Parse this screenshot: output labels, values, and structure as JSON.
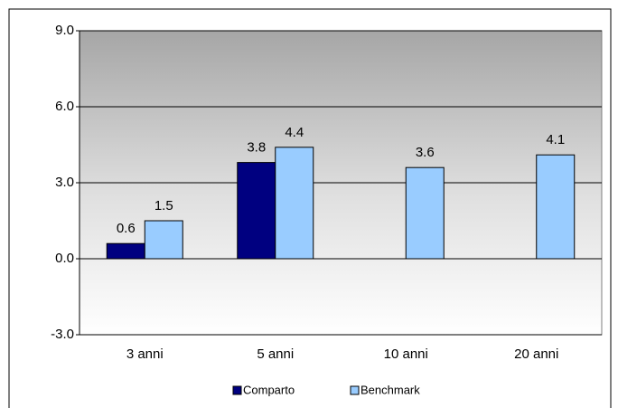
{
  "chart_data": {
    "type": "bar",
    "categories": [
      "3 anni",
      "5 anni",
      "10 anni",
      "20 anni"
    ],
    "series": [
      {
        "name": "Comparto",
        "color": "#000080",
        "values": [
          0.6,
          3.8,
          null,
          null
        ]
      },
      {
        "name": "Benchmark",
        "color": "#99ccff",
        "values": [
          1.5,
          4.4,
          3.6,
          4.1
        ]
      }
    ],
    "ylim": [
      -3,
      9
    ],
    "yticks": [
      {
        "value": -3,
        "label": "-3.0"
      },
      {
        "value": 0,
        "label": "0.0"
      },
      {
        "value": 3,
        "label": "3.0"
      },
      {
        "value": 6,
        "label": "6.0"
      },
      {
        "value": 9,
        "label": "9.0"
      }
    ],
    "grid": true,
    "legend": "bottom"
  }
}
